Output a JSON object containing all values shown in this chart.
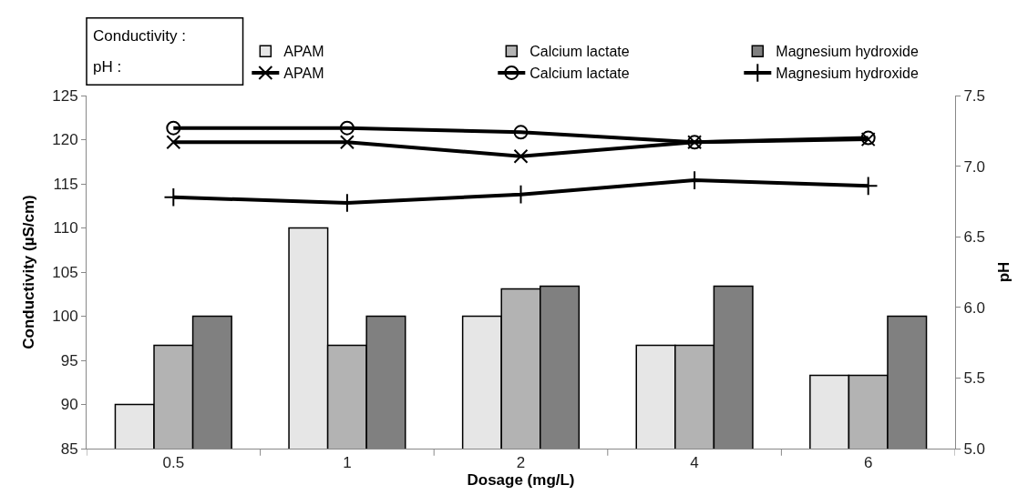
{
  "chart_data": {
    "type": "bar",
    "xlabel": "Dosage (mg/L)",
    "ylabel": "Conductivity (µS/cm)",
    "y2label": "pH",
    "categories": [
      "0.5",
      "1",
      "2",
      "4",
      "6"
    ],
    "series": [
      {
        "name": "APAM",
        "color": "#e6e6e6",
        "values": [
          90,
          110,
          100,
          96.7,
          93.3
        ]
      },
      {
        "name": "Calcium lactate",
        "color": "#b3b3b3",
        "values": [
          96.7,
          96.7,
          103.1,
          96.7,
          93.3
        ]
      },
      {
        "name": "Magnesium hydroxide",
        "color": "#808080",
        "values": [
          100,
          100,
          103.4,
          103.4,
          100
        ]
      },
      {
        "name": "APAM",
        "type": "line",
        "axis": "y2",
        "color": "#000000",
        "marker": "cross",
        "values": [
          7.17,
          7.17,
          7.07,
          7.17,
          7.19
        ]
      },
      {
        "name": "Calcium lactate",
        "type": "line",
        "axis": "y2",
        "color": "#000000",
        "marker": "circle",
        "values": [
          7.27,
          7.27,
          7.24,
          7.17,
          7.2
        ]
      },
      {
        "name": "Magnesium hydroxide",
        "type": "line",
        "axis": "y2",
        "color": "#000000",
        "marker": "cross",
        "values": [
          6.78,
          6.74,
          6.8,
          6.9,
          6.86
        ]
      }
    ],
    "ylim": [
      85,
      125
    ],
    "yticks": [
      85,
      90,
      95,
      100,
      105,
      110,
      115,
      120,
      125
    ],
    "y2lim": [
      5.0,
      7.5
    ],
    "y2ticks": [
      {
        "value": 5.0,
        "label": "5.0"
      },
      {
        "value": 5.5,
        "label": "5.5"
      },
      {
        "value": 6.0,
        "label": "6.0"
      },
      {
        "value": 6.5,
        "label": "6.5"
      },
      {
        "value": 7.0,
        "label": "7.0"
      },
      {
        "value": 7.5,
        "label": "7.5"
      }
    ],
    "annotations": [
      "Conductivity :",
      "pH :"
    ],
    "legend": "top"
  }
}
